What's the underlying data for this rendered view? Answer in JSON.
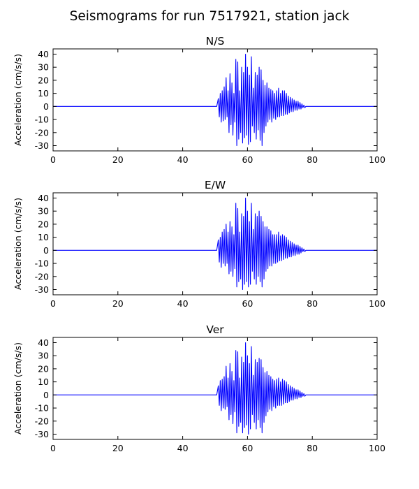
{
  "figure": {
    "title": "Seismograms for run 7517921, station jack",
    "line_color": "#0000ff"
  },
  "chart_data": [
    {
      "type": "line",
      "title": "N/S",
      "xlabel": "",
      "ylabel": "Acceleration (cm/s/s)",
      "xlim": [
        0,
        100
      ],
      "ylim": [
        -34,
        44
      ],
      "xticks": [
        0,
        20,
        40,
        60,
        80,
        100
      ],
      "yticks": [
        -30,
        -20,
        -10,
        0,
        10,
        20,
        30,
        40
      ],
      "series": [
        {
          "x": [
            0,
            50.5,
            51.0,
            51.3,
            51.6,
            51.9,
            52.2,
            52.5,
            52.8,
            53.1,
            53.4,
            53.7,
            54.0,
            54.3,
            54.6,
            54.9,
            55.2,
            55.5,
            55.8,
            56.1,
            56.4,
            56.7,
            57.0,
            57.3,
            57.6,
            57.9,
            58.2,
            58.5,
            58.8,
            59.1,
            59.4,
            59.7,
            60.0,
            60.3,
            60.6,
            60.9,
            61.2,
            61.5,
            61.8,
            62.1,
            62.4,
            62.7,
            63.0,
            63.3,
            63.6,
            63.9,
            64.2,
            64.5,
            64.8,
            65.1,
            65.4,
            65.7,
            66.0,
            66.3,
            66.6,
            66.9,
            67.2,
            67.5,
            67.8,
            68.1,
            68.4,
            68.7,
            69.0,
            69.3,
            69.6,
            69.9,
            70.2,
            70.5,
            70.8,
            71.1,
            71.4,
            71.7,
            72.0,
            72.3,
            72.6,
            72.9,
            73.2,
            73.5,
            73.8,
            74.1,
            74.4,
            74.7,
            75.0,
            75.3,
            75.6,
            75.9,
            76.2,
            76.5,
            76.8,
            77.1,
            77.4,
            77.7,
            78.0,
            78.5,
            100
          ],
          "y": [
            0,
            0,
            6,
            -8,
            10,
            -12,
            12,
            -11,
            15,
            -10,
            22,
            -8,
            12,
            -20,
            25,
            -14,
            18,
            -22,
            10,
            -12,
            36,
            -30,
            34,
            -25,
            12,
            -20,
            30,
            -28,
            26,
            -24,
            40,
            -22,
            30,
            -29,
            24,
            -27,
            38,
            -15,
            14,
            -20,
            26,
            -25,
            24,
            -18,
            30,
            -26,
            28,
            -30,
            20,
            -20,
            16,
            -15,
            18,
            -12,
            14,
            -10,
            13,
            -12,
            12,
            -9,
            10,
            -10,
            12,
            -8,
            14,
            -8,
            10,
            -7,
            12,
            -7,
            12,
            -6,
            10,
            -6,
            8,
            -5,
            7,
            -4,
            6,
            -4,
            5,
            -3,
            4,
            -3,
            4,
            -2,
            3,
            -2,
            2,
            -1,
            1,
            -1,
            0,
            0,
            0
          ]
        }
      ]
    },
    {
      "type": "line",
      "title": "E/W",
      "xlabel": "",
      "ylabel": "Acceleration (cm/s/s)",
      "xlim": [
        0,
        100
      ],
      "ylim": [
        -34,
        44
      ],
      "xticks": [
        0,
        20,
        40,
        60,
        80,
        100
      ],
      "yticks": [
        -30,
        -20,
        -10,
        0,
        10,
        20,
        30,
        40
      ],
      "series": [
        {
          "x": [
            0,
            50.5,
            51.0,
            51.3,
            51.6,
            51.9,
            52.2,
            52.5,
            52.8,
            53.1,
            53.4,
            53.7,
            54.0,
            54.3,
            54.6,
            54.9,
            55.2,
            55.5,
            55.8,
            56.1,
            56.4,
            56.7,
            57.0,
            57.3,
            57.6,
            57.9,
            58.2,
            58.5,
            58.8,
            59.1,
            59.4,
            59.7,
            60.0,
            60.3,
            60.6,
            60.9,
            61.2,
            61.5,
            61.8,
            62.1,
            62.4,
            62.7,
            63.0,
            63.3,
            63.6,
            63.9,
            64.2,
            64.5,
            64.8,
            65.1,
            65.4,
            65.7,
            66.0,
            66.3,
            66.6,
            66.9,
            67.2,
            67.5,
            67.8,
            68.1,
            68.4,
            68.7,
            69.0,
            69.3,
            69.6,
            69.9,
            70.2,
            70.5,
            70.8,
            71.1,
            71.4,
            71.7,
            72.0,
            72.3,
            72.6,
            72.9,
            73.2,
            73.5,
            73.8,
            74.1,
            74.4,
            74.7,
            75.0,
            75.3,
            75.6,
            75.9,
            76.2,
            76.5,
            76.8,
            77.1,
            77.4,
            77.7,
            78.0,
            78.5,
            100
          ],
          "y": [
            0,
            0,
            8,
            -9,
            10,
            -13,
            14,
            -10,
            16,
            -12,
            20,
            -10,
            14,
            -18,
            22,
            -16,
            18,
            -20,
            12,
            -14,
            36,
            -28,
            32,
            -24,
            14,
            -22,
            28,
            -30,
            26,
            -26,
            40,
            -24,
            30,
            -28,
            22,
            -26,
            36,
            -16,
            16,
            -22,
            28,
            -26,
            26,
            -20,
            30,
            -24,
            26,
            -28,
            22,
            -22,
            18,
            -16,
            18,
            -14,
            16,
            -12,
            15,
            -12,
            12,
            -10,
            12,
            -10,
            12,
            -9,
            14,
            -8,
            11,
            -8,
            12,
            -7,
            11,
            -6,
            10,
            -6,
            8,
            -5,
            7,
            -5,
            6,
            -4,
            5,
            -4,
            4,
            -3,
            4,
            -3,
            3,
            -2,
            2,
            -1,
            1,
            -1,
            0,
            0,
            0
          ]
        }
      ]
    },
    {
      "type": "line",
      "title": "Ver",
      "xlabel": "",
      "ylabel": "Acceleration (cm/s/s)",
      "xlim": [
        0,
        100
      ],
      "ylim": [
        -34,
        44
      ],
      "xticks": [
        0,
        20,
        40,
        60,
        80,
        100
      ],
      "yticks": [
        -30,
        -20,
        -10,
        0,
        10,
        20,
        30,
        40
      ],
      "series": [
        {
          "x": [
            0,
            50.5,
            51.0,
            51.3,
            51.6,
            51.9,
            52.2,
            52.5,
            52.8,
            53.1,
            53.4,
            53.7,
            54.0,
            54.3,
            54.6,
            54.9,
            55.2,
            55.5,
            55.8,
            56.1,
            56.4,
            56.7,
            57.0,
            57.3,
            57.6,
            57.9,
            58.2,
            58.5,
            58.8,
            59.1,
            59.4,
            59.7,
            60.0,
            60.3,
            60.6,
            60.9,
            61.2,
            61.5,
            61.8,
            62.1,
            62.4,
            62.7,
            63.0,
            63.3,
            63.6,
            63.9,
            64.2,
            64.5,
            64.8,
            65.1,
            65.4,
            65.7,
            66.0,
            66.3,
            66.6,
            66.9,
            67.2,
            67.5,
            67.8,
            68.1,
            68.4,
            68.7,
            69.0,
            69.3,
            69.6,
            69.9,
            70.2,
            70.5,
            70.8,
            71.1,
            71.4,
            71.7,
            72.0,
            72.3,
            72.6,
            72.9,
            73.2,
            73.5,
            73.8,
            74.1,
            74.4,
            74.7,
            75.0,
            75.3,
            75.6,
            75.9,
            76.2,
            76.5,
            76.8,
            77.1,
            77.4,
            77.7,
            78.0,
            78.5,
            100
          ],
          "y": [
            0,
            0,
            7,
            -8,
            11,
            -12,
            12,
            -10,
            14,
            -11,
            22,
            -9,
            13,
            -19,
            24,
            -15,
            18,
            -22,
            11,
            -13,
            34,
            -29,
            33,
            -24,
            13,
            -21,
            29,
            -29,
            25,
            -25,
            40,
            -23,
            30,
            -30,
            24,
            -26,
            37,
            -15,
            15,
            -21,
            27,
            -26,
            25,
            -19,
            28,
            -25,
            27,
            -29,
            21,
            -21,
            17,
            -16,
            18,
            -13,
            15,
            -11,
            14,
            -12,
            12,
            -9,
            11,
            -10,
            12,
            -8,
            13,
            -8,
            10,
            -8,
            12,
            -7,
            11,
            -6,
            10,
            -6,
            8,
            -5,
            7,
            -4,
            6,
            -4,
            5,
            -3,
            4,
            -3,
            4,
            -2,
            3,
            -2,
            2,
            -1,
            1,
            -1,
            0,
            0,
            0
          ]
        }
      ]
    }
  ]
}
